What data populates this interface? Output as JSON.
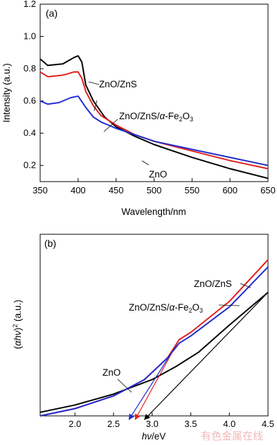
{
  "chart_data": [
    {
      "type": "line",
      "panel_label": "(a)",
      "xlabel": "Wavelength/nm",
      "ylabel": "Intensity (a.u.)",
      "xlim": [
        350,
        650
      ],
      "ylim": [
        0.1,
        1.2
      ],
      "xticks": [
        350,
        400,
        450,
        500,
        550,
        600,
        650
      ],
      "yticks": [
        0.2,
        0.4,
        0.6,
        0.8,
        1.0,
        1.2
      ],
      "ytick_labels": [
        "0.2",
        "0.4",
        "0.6",
        "0.8",
        "1.0",
        "1.2"
      ],
      "series": [
        {
          "name": "ZnO",
          "color": "#000000",
          "x": [
            350,
            360,
            380,
            395,
            400,
            405,
            410,
            420,
            435,
            450,
            475,
            500,
            550,
            600,
            650
          ],
          "y": [
            0.86,
            0.82,
            0.83,
            0.87,
            0.88,
            0.84,
            0.7,
            0.6,
            0.5,
            0.44,
            0.38,
            0.33,
            0.25,
            0.18,
            0.12
          ]
        },
        {
          "name": "ZnO/ZnS",
          "color": "#e0201c",
          "x": [
            350,
            360,
            380,
            395,
            400,
            405,
            410,
            420,
            430,
            450,
            475,
            500,
            550,
            600,
            650
          ],
          "y": [
            0.78,
            0.75,
            0.76,
            0.78,
            0.78,
            0.74,
            0.66,
            0.57,
            0.51,
            0.45,
            0.39,
            0.35,
            0.29,
            0.23,
            0.18
          ]
        },
        {
          "name": "ZnO/ZnS/α-Fe2O3",
          "color": "#1f2ccf",
          "x": [
            350,
            360,
            375,
            390,
            400,
            410,
            420,
            430,
            440,
            450,
            475,
            500,
            550,
            600,
            650
          ],
          "y": [
            0.6,
            0.58,
            0.59,
            0.62,
            0.63,
            0.56,
            0.5,
            0.47,
            0.45,
            0.43,
            0.39,
            0.35,
            0.3,
            0.25,
            0.2
          ]
        }
      ],
      "annotations": [
        {
          "text": "ZnO/ZnS",
          "target": "ZnO/ZnS"
        },
        {
          "text": "ZnO/ZnS/α-Fe2O3",
          "target": "ZnO/ZnS/α-Fe2O3"
        },
        {
          "text": "ZnO",
          "target": "ZnO"
        }
      ]
    },
    {
      "type": "line",
      "panel_label": "(b)",
      "xlabel": "hν/eV",
      "ylabel": "(αhν)² (a.u.)",
      "xlim": [
        1.55,
        4.5
      ],
      "xticks": [
        2.0,
        2.5,
        3.0,
        3.5,
        4.0,
        4.5
      ],
      "xtick_labels": [
        "2.0",
        "2.5",
        "3.0",
        "3.5",
        "4.0",
        "4.5"
      ],
      "ylim": [
        0,
        1
      ],
      "series": [
        {
          "name": "ZnO",
          "color": "#000000",
          "x": [
            1.55,
            2.0,
            2.5,
            3.0,
            3.3,
            3.6,
            4.0,
            4.5
          ],
          "y": [
            0.02,
            0.06,
            0.12,
            0.2,
            0.27,
            0.35,
            0.5,
            0.68
          ]
        },
        {
          "name": "ZnO/ZnS",
          "color": "#e0201c",
          "x": [
            1.55,
            2.0,
            2.5,
            2.9,
            3.2,
            3.35,
            3.5,
            4.0,
            4.5
          ],
          "y": [
            0.0,
            0.04,
            0.11,
            0.2,
            0.32,
            0.42,
            0.46,
            0.63,
            0.86
          ]
        },
        {
          "name": "ZnO/ZnS/α-Fe2O3",
          "color": "#1f2ccf",
          "x": [
            1.55,
            2.0,
            2.5,
            2.9,
            3.2,
            3.35,
            3.5,
            4.0,
            4.5
          ],
          "y": [
            0.0,
            0.04,
            0.11,
            0.2,
            0.32,
            0.4,
            0.44,
            0.6,
            0.82
          ]
        }
      ],
      "tangents": [
        {
          "series": "ZnO/ZnS",
          "color": "#e0201c",
          "from": [
            3.35,
            0.42
          ],
          "to": [
            2.78,
            -0.02
          ]
        },
        {
          "series": "ZnO/ZnS/α-Fe2O3",
          "color": "#1f2ccf",
          "from": [
            3.3,
            0.38
          ],
          "to": [
            2.7,
            -0.02
          ]
        },
        {
          "series": "ZnO",
          "color": "#000000",
          "from": [
            4.5,
            0.68
          ],
          "to": [
            2.9,
            -0.02
          ]
        }
      ],
      "annotations": [
        {
          "text": "ZnO/ZnS",
          "target": "ZnO/ZnS"
        },
        {
          "text": "ZnO/ZnS/α-Fe2O3",
          "target": "ZnO/ZnS/α-Fe2O3"
        },
        {
          "text": "ZnO",
          "target": "ZnO"
        }
      ]
    }
  ],
  "watermark": "有色金属在线"
}
